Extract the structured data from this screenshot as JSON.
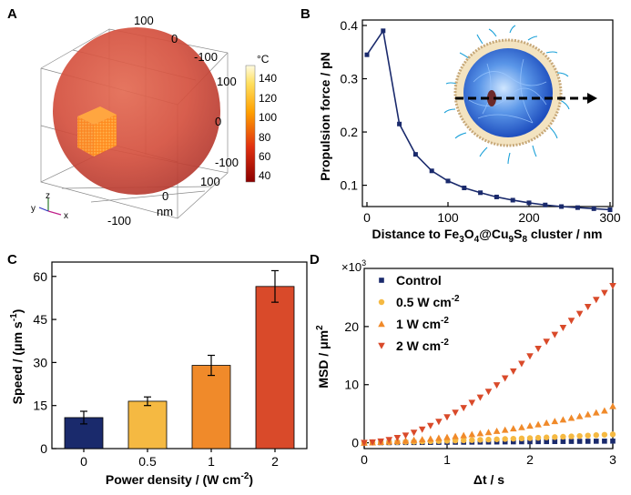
{
  "colors": {
    "navy": "#1a2a6c",
    "control": "#1a2a6c",
    "p05": "#f5b942",
    "p1": "#f08a2a",
    "p2": "#d94a2a"
  },
  "chart_data": [
    {
      "panel": "A",
      "type": "3d-render",
      "axis_ticks_top": [
        "100",
        "0",
        "-100"
      ],
      "axis_ticks_right": [
        "100",
        "0",
        "-100"
      ],
      "axis_ticks_bottom": [
        "100",
        "0",
        "-100"
      ],
      "axis_unit": "nm",
      "orient_axes": [
        "z",
        "y",
        "x"
      ],
      "colorbar_unit": "°C",
      "colorbar_ticks": [
        "140",
        "120",
        "100",
        "80",
        "60",
        "40"
      ]
    },
    {
      "panel": "B",
      "type": "line",
      "xlabel_parts": [
        "Distance to Fe",
        "3",
        "O",
        "4",
        "@Cu",
        "9",
        "S",
        "8",
        " cluster / nm"
      ],
      "ylabel": "Propulsion force / pN",
      "xlim": [
        0,
        300
      ],
      "ylim": [
        0.06,
        0.4
      ],
      "xticks": [
        0,
        100,
        200,
        300
      ],
      "yticks": [
        0.1,
        0.2,
        0.3,
        0.4
      ],
      "series": [
        {
          "x": [
            0,
            20,
            40,
            60,
            80,
            100,
            120,
            140,
            160,
            180,
            200,
            220,
            240,
            260,
            280,
            300
          ],
          "y": [
            0.345,
            0.39,
            0.215,
            0.158,
            0.127,
            0.108,
            0.095,
            0.086,
            0.078,
            0.072,
            0.067,
            0.063,
            0.06,
            0.058,
            0.056,
            0.054
          ]
        }
      ]
    },
    {
      "panel": "C",
      "type": "bar",
      "categories": [
        "0",
        "0.5",
        "1",
        "2"
      ],
      "values": [
        10.8,
        16.5,
        29,
        56.5
      ],
      "errors": [
        2.2,
        1.5,
        3.5,
        5.5
      ],
      "xlabel": "Power density / (W cm",
      "xlabel_sup": "-2",
      "xlabel_end": ")",
      "ylabel": "Speed / (μm s",
      "ylabel_sup": "-1",
      "ylabel_end": ")",
      "ylim": [
        0,
        65
      ],
      "yticks": [
        0,
        15,
        30,
        45,
        60
      ]
    },
    {
      "panel": "D",
      "type": "scatter",
      "xlabel": "Δt / s",
      "ylabel": "MSD / μm",
      "ylabel_sup": "2",
      "multiplier": "×10",
      "multiplier_sup": "3",
      "xlim": [
        0,
        3
      ],
      "ylim": [
        -1,
        30
      ],
      "xticks": [
        0,
        1,
        2,
        3
      ],
      "yticks": [
        0,
        10,
        20
      ],
      "x": [
        0,
        0.1,
        0.2,
        0.3,
        0.4,
        0.5,
        0.6,
        0.7,
        0.8,
        0.9,
        1.0,
        1.1,
        1.2,
        1.3,
        1.4,
        1.5,
        1.6,
        1.7,
        1.8,
        1.9,
        2.0,
        2.1,
        2.2,
        2.3,
        2.4,
        2.5,
        2.6,
        2.7,
        2.8,
        2.9,
        3.0
      ],
      "series": [
        {
          "name": "Control",
          "name_sup": "",
          "marker": "square",
          "values": [
            0,
            0.01,
            0.02,
            0.03,
            0.04,
            0.05,
            0.05,
            0.06,
            0.07,
            0.08,
            0.09,
            0.1,
            0.11,
            0.12,
            0.13,
            0.14,
            0.15,
            0.16,
            0.17,
            0.18,
            0.19,
            0.2,
            0.21,
            0.22,
            0.23,
            0.24,
            0.25,
            0.26,
            0.27,
            0.28,
            0.29
          ]
        },
        {
          "name": "0.5 W cm",
          "name_sup": "-2",
          "marker": "circle",
          "values": [
            0,
            0.03,
            0.06,
            0.09,
            0.12,
            0.15,
            0.18,
            0.22,
            0.26,
            0.3,
            0.34,
            0.38,
            0.42,
            0.46,
            0.5,
            0.55,
            0.6,
            0.65,
            0.7,
            0.75,
            0.8,
            0.86,
            0.92,
            0.98,
            1.04,
            1.1,
            1.17,
            1.24,
            1.31,
            1.38,
            1.45
          ]
        },
        {
          "name": "1 W cm",
          "name_sup": "-2",
          "marker": "triangle-up",
          "values": [
            0,
            0.05,
            0.12,
            0.2,
            0.28,
            0.37,
            0.47,
            0.58,
            0.7,
            0.83,
            0.97,
            1.12,
            1.28,
            1.45,
            1.63,
            1.82,
            2.02,
            2.23,
            2.45,
            2.68,
            2.92,
            3.17,
            3.43,
            3.7,
            3.98,
            4.27,
            4.57,
            4.88,
            5.2,
            5.53,
            6.3
          ]
        },
        {
          "name": "2 W cm",
          "name_sup": "-2",
          "marker": "triangle-down",
          "values": [
            0,
            0.08,
            0.24,
            0.5,
            0.84,
            1.25,
            1.74,
            2.3,
            2.93,
            3.63,
            4.4,
            5.2,
            6.0,
            6.9,
            7.8,
            8.8,
            9.9,
            11.1,
            12.3,
            13.6,
            14.9,
            16.2,
            17.4,
            18.6,
            19.8,
            21.0,
            22.2,
            23.4,
            24.6,
            25.8,
            27.0
          ]
        }
      ]
    }
  ],
  "panel_labels": [
    "A",
    "B",
    "C",
    "D"
  ]
}
